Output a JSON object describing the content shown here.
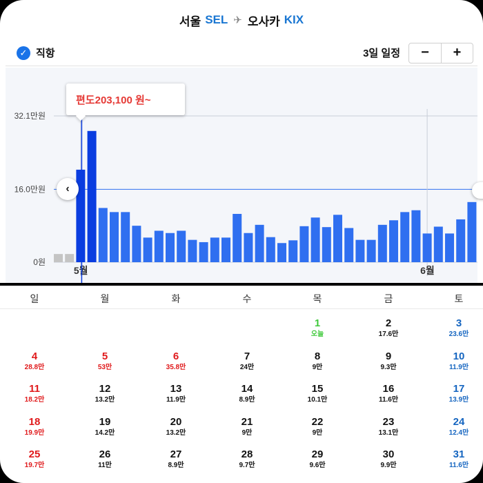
{
  "header": {
    "origin_city": "서울",
    "origin_code": "SEL",
    "dest_city": "오사카",
    "dest_code": "KIX"
  },
  "toolbar": {
    "direct_label": "직항",
    "trip_length": "3일 일정",
    "minus": "−",
    "plus": "+"
  },
  "tooltip": {
    "text": "편도203,100 원~"
  },
  "colors": {
    "bar": "#2f6ff0",
    "bar_selected": "#0a3de0",
    "bar_empty": "#c4c4c4",
    "accent": "#1a73e8",
    "weekend_red": "#e0191b",
    "weekend_blue": "#1565c0",
    "today_green": "#3fc93b"
  },
  "chart_data": {
    "type": "bar",
    "ytick_labels": [
      "32.1만원",
      "16.0만원",
      "0원"
    ],
    "ytick_values": [
      32.1,
      16.0,
      0
    ],
    "ylim": [
      0,
      32.1
    ],
    "month_labels": [
      {
        "label": "5월",
        "day_index": 2
      },
      {
        "label": "6월",
        "day_index": 33
      }
    ],
    "values": [
      1.8,
      1.8,
      20.3,
      28.8,
      11.9,
      11.0,
      11.0,
      8.0,
      5.4,
      6.9,
      6.4,
      6.9,
      4.9,
      4.4,
      5.4,
      5.4,
      10.6,
      6.4,
      8.2,
      5.5,
      4.2,
      4.8,
      7.9,
      9.8,
      7.7,
      10.4,
      7.5,
      4.9,
      4.9,
      8.2,
      9.2,
      11.0,
      11.4,
      6.3,
      7.8,
      6.3,
      9.4,
      13.2
    ],
    "empty_indices": [
      0,
      1
    ],
    "selected_index": 2
  },
  "calendar": {
    "weekdays": [
      "일",
      "월",
      "화",
      "수",
      "목",
      "금",
      "토"
    ],
    "weeks": [
      [
        null,
        null,
        null,
        null,
        {
          "day": "1",
          "price": "오늘",
          "type": "green"
        },
        {
          "day": "2",
          "price": "17.6만",
          "type": "normal"
        },
        {
          "day": "3",
          "price": "23.6만",
          "type": "blue"
        }
      ],
      [
        {
          "day": "4",
          "price": "28.8만",
          "type": "red"
        },
        {
          "day": "5",
          "price": "53만",
          "type": "red"
        },
        {
          "day": "6",
          "price": "35.8만",
          "type": "red"
        },
        {
          "day": "7",
          "price": "24만",
          "type": "normal"
        },
        {
          "day": "8",
          "price": "9만",
          "type": "normal"
        },
        {
          "day": "9",
          "price": "9.3만",
          "type": "normal"
        },
        {
          "day": "10",
          "price": "11.9만",
          "type": "blue"
        }
      ],
      [
        {
          "day": "11",
          "price": "18.2만",
          "type": "red"
        },
        {
          "day": "12",
          "price": "13.2만",
          "type": "normal"
        },
        {
          "day": "13",
          "price": "11.9만",
          "type": "normal"
        },
        {
          "day": "14",
          "price": "8.9만",
          "type": "normal"
        },
        {
          "day": "15",
          "price": "10.1만",
          "type": "normal"
        },
        {
          "day": "16",
          "price": "11.6만",
          "type": "normal"
        },
        {
          "day": "17",
          "price": "13.9만",
          "type": "blue"
        }
      ],
      [
        {
          "day": "18",
          "price": "19.9만",
          "type": "red"
        },
        {
          "day": "19",
          "price": "14.2만",
          "type": "normal"
        },
        {
          "day": "20",
          "price": "13.2만",
          "type": "normal"
        },
        {
          "day": "21",
          "price": "9만",
          "type": "normal"
        },
        {
          "day": "22",
          "price": "9만",
          "type": "normal"
        },
        {
          "day": "23",
          "price": "13.1만",
          "type": "normal"
        },
        {
          "day": "24",
          "price": "12.4만",
          "type": "blue"
        }
      ],
      [
        {
          "day": "25",
          "price": "19.7만",
          "type": "red"
        },
        {
          "day": "26",
          "price": "11만",
          "type": "normal"
        },
        {
          "day": "27",
          "price": "8.9만",
          "type": "normal"
        },
        {
          "day": "28",
          "price": "9.7만",
          "type": "normal"
        },
        {
          "day": "29",
          "price": "9.6만",
          "type": "normal"
        },
        {
          "day": "30",
          "price": "9.9만",
          "type": "normal"
        },
        {
          "day": "31",
          "price": "11.6만",
          "type": "blue"
        }
      ]
    ]
  }
}
